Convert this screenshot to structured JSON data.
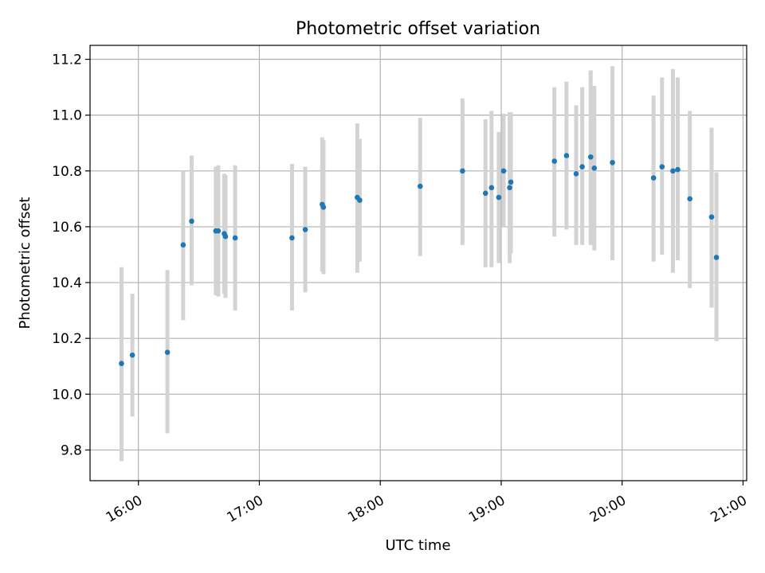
{
  "chart_data": {
    "type": "scatter",
    "title": "Photometric offset variation",
    "xlabel": "UTC time",
    "ylabel": "Photometric offset",
    "x_unit": "hours UTC",
    "xlim": [
      15.6,
      21.03
    ],
    "ylim": [
      9.69,
      11.25
    ],
    "grid": true,
    "x_ticks": [
      {
        "value": 16,
        "label": "16:00"
      },
      {
        "value": 17,
        "label": "17:00"
      },
      {
        "value": 18,
        "label": "18:00"
      },
      {
        "value": 19,
        "label": "19:00"
      },
      {
        "value": 20,
        "label": "20:00"
      },
      {
        "value": 21,
        "label": "21:00"
      }
    ],
    "y_ticks": [
      {
        "value": 9.8,
        "label": "9.8"
      },
      {
        "value": 10.0,
        "label": "10.0"
      },
      {
        "value": 10.2,
        "label": "10.2"
      },
      {
        "value": 10.4,
        "label": "10.4"
      },
      {
        "value": 10.6,
        "label": "10.6"
      },
      {
        "value": 10.8,
        "label": "10.8"
      },
      {
        "value": 11.0,
        "label": "11.0"
      },
      {
        "value": 11.2,
        "label": "11.2"
      }
    ],
    "marker_color": "#1f77b4",
    "errorbar_color": "#d3d3d3",
    "points": [
      {
        "x": 15.86,
        "y": 10.11,
        "ylow": 9.76,
        "yhigh": 10.455
      },
      {
        "x": 15.95,
        "y": 10.14,
        "ylow": 9.92,
        "yhigh": 10.36
      },
      {
        "x": 16.24,
        "y": 10.15,
        "ylow": 9.86,
        "yhigh": 10.445
      },
      {
        "x": 16.37,
        "y": 10.535,
        "ylow": 10.265,
        "yhigh": 10.8
      },
      {
        "x": 16.44,
        "y": 10.62,
        "ylow": 10.39,
        "yhigh": 10.855
      },
      {
        "x": 16.64,
        "y": 10.585,
        "ylow": 10.355,
        "yhigh": 10.815
      },
      {
        "x": 16.66,
        "y": 10.585,
        "ylow": 10.35,
        "yhigh": 10.82
      },
      {
        "x": 16.71,
        "y": 10.575,
        "ylow": 10.36,
        "yhigh": 10.79
      },
      {
        "x": 16.72,
        "y": 10.565,
        "ylow": 10.345,
        "yhigh": 10.785
      },
      {
        "x": 16.8,
        "y": 10.56,
        "ylow": 10.3,
        "yhigh": 10.82
      },
      {
        "x": 17.27,
        "y": 10.56,
        "ylow": 10.3,
        "yhigh": 10.825
      },
      {
        "x": 17.38,
        "y": 10.59,
        "ylow": 10.365,
        "yhigh": 10.815
      },
      {
        "x": 17.52,
        "y": 10.68,
        "ylow": 10.44,
        "yhigh": 10.92
      },
      {
        "x": 17.53,
        "y": 10.67,
        "ylow": 10.43,
        "yhigh": 10.91
      },
      {
        "x": 17.81,
        "y": 10.705,
        "ylow": 10.435,
        "yhigh": 10.97
      },
      {
        "x": 17.83,
        "y": 10.695,
        "ylow": 10.475,
        "yhigh": 10.915
      },
      {
        "x": 18.33,
        "y": 10.745,
        "ylow": 10.495,
        "yhigh": 10.99
      },
      {
        "x": 18.68,
        "y": 10.8,
        "ylow": 10.535,
        "yhigh": 11.06
      },
      {
        "x": 18.87,
        "y": 10.72,
        "ylow": 10.455,
        "yhigh": 10.985
      },
      {
        "x": 18.92,
        "y": 10.74,
        "ylow": 10.455,
        "yhigh": 11.015
      },
      {
        "x": 18.98,
        "y": 10.705,
        "ylow": 10.47,
        "yhigh": 10.94
      },
      {
        "x": 19.02,
        "y": 10.8,
        "ylow": 10.6,
        "yhigh": 11.005
      },
      {
        "x": 19.07,
        "y": 10.74,
        "ylow": 10.47,
        "yhigh": 11.01
      },
      {
        "x": 19.08,
        "y": 10.76,
        "ylow": 10.505,
        "yhigh": 11.01
      },
      {
        "x": 19.44,
        "y": 10.835,
        "ylow": 10.565,
        "yhigh": 11.1
      },
      {
        "x": 19.54,
        "y": 10.855,
        "ylow": 10.59,
        "yhigh": 11.12
      },
      {
        "x": 19.62,
        "y": 10.79,
        "ylow": 10.535,
        "yhigh": 11.035
      },
      {
        "x": 19.67,
        "y": 10.815,
        "ylow": 10.535,
        "yhigh": 11.1
      },
      {
        "x": 19.74,
        "y": 10.85,
        "ylow": 10.535,
        "yhigh": 11.16
      },
      {
        "x": 19.77,
        "y": 10.81,
        "ylow": 10.515,
        "yhigh": 11.105
      },
      {
        "x": 19.92,
        "y": 10.83,
        "ylow": 10.48,
        "yhigh": 11.175
      },
      {
        "x": 20.26,
        "y": 10.775,
        "ylow": 10.475,
        "yhigh": 11.07
      },
      {
        "x": 20.33,
        "y": 10.815,
        "ylow": 10.5,
        "yhigh": 11.135
      },
      {
        "x": 20.42,
        "y": 10.8,
        "ylow": 10.435,
        "yhigh": 11.165
      },
      {
        "x": 20.46,
        "y": 10.805,
        "ylow": 10.48,
        "yhigh": 11.135
      },
      {
        "x": 20.56,
        "y": 10.7,
        "ylow": 10.38,
        "yhigh": 11.015
      },
      {
        "x": 20.74,
        "y": 10.635,
        "ylow": 10.31,
        "yhigh": 10.955
      },
      {
        "x": 20.78,
        "y": 10.49,
        "ylow": 10.19,
        "yhigh": 10.795
      }
    ]
  }
}
